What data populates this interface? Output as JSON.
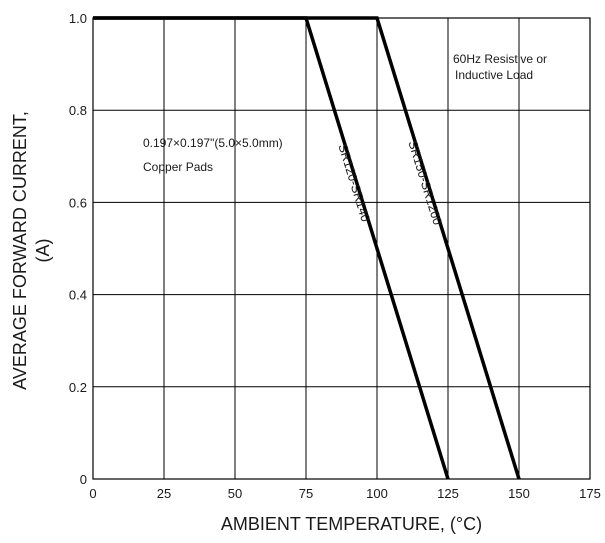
{
  "chart_data": {
    "type": "line",
    "xlabel": "AMBIENT TEMPERATURE, (°C)",
    "ylabel_line1": "AVERAGE FORWARD CURRENT,",
    "ylabel_line2": "(A)",
    "xlim": [
      0,
      175
    ],
    "ylim": [
      0,
      1.0
    ],
    "x_ticks": [
      0,
      25,
      50,
      75,
      100,
      125,
      150,
      175
    ],
    "x_tick_labels": [
      "0",
      "25",
      "50",
      "75",
      "100",
      "125",
      "150",
      "175"
    ],
    "y_ticks": [
      0,
      0.2,
      0.4,
      0.6,
      0.8,
      1.0
    ],
    "y_tick_labels": [
      "0",
      "0.2",
      "0.4",
      "0.6",
      "0.8",
      "1.0"
    ],
    "grid": true,
    "series": [
      {
        "name": "SR120-SR140",
        "x": [
          0,
          75,
          125
        ],
        "y": [
          1.0,
          1.0,
          0
        ]
      },
      {
        "name": "SR150-SR1200",
        "x": [
          0,
          100,
          150
        ],
        "y": [
          1.0,
          1.0,
          0
        ]
      }
    ],
    "annotations": {
      "load_line1": "60Hz Resistive or",
      "load_line2": "Inductive Load",
      "pads_line1": "0.197×0.197\"(5.0×5.0mm)",
      "pads_line2": "Copper Pads"
    }
  }
}
